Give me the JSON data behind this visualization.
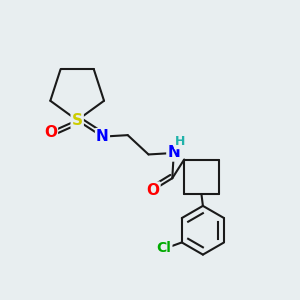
{
  "background_color": "#e8eef0",
  "atom_colors": {
    "S": "#cccc00",
    "O": "#ff0000",
    "N": "#0000ff",
    "H": "#20b2aa",
    "Cl": "#00aa00",
    "C": "#000000"
  },
  "bond_color": "#1a1a1a",
  "bond_width": 1.5,
  "figsize": [
    3.0,
    3.0
  ],
  "dpi": 100
}
